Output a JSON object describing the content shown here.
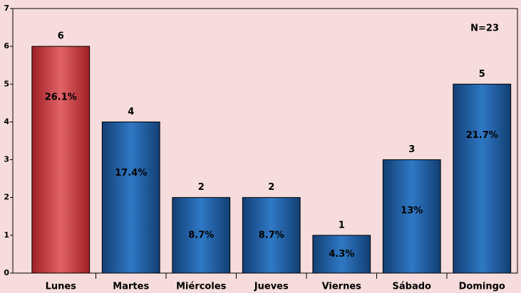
{
  "chart_data": {
    "type": "bar",
    "categories": [
      "Lunes",
      "Martes",
      "Miércoles",
      "Jueves",
      "Viernes",
      "Sábado",
      "Domingo"
    ],
    "values": [
      6,
      4,
      2,
      2,
      1,
      3,
      5
    ],
    "percent_labels": [
      "26.1%",
      "17.4%",
      "8.7%",
      "8.7%",
      "4.3%",
      "13%",
      "21.7%"
    ],
    "colors": [
      "#c8383c",
      "#1d5796",
      "#1d5796",
      "#1d5796",
      "#1d5796",
      "#1d5796",
      "#1d5796"
    ],
    "annotation": "N=23",
    "ylim": [
      0,
      7
    ],
    "yticks": [
      0,
      1,
      2,
      3,
      4,
      5,
      6,
      7
    ]
  }
}
